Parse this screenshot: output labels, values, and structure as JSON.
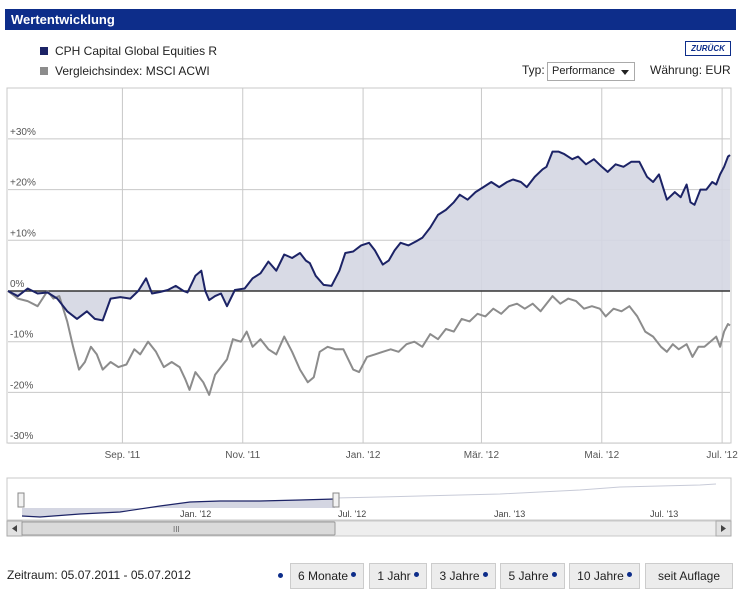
{
  "header": {
    "title": "Wertentwicklung"
  },
  "legend": [
    {
      "label": "CPH Capital Global Equities R",
      "color": "#1c2366"
    },
    {
      "label": "Vergleichsindex: MSCI ACWI",
      "color": "#8c8c8c"
    }
  ],
  "back_button": "ZURÜCK",
  "controls": {
    "typ_label": "Typ:",
    "typ_value": "Performance",
    "currency": "Währung: EUR"
  },
  "chart_data": {
    "type": "area",
    "x_start": "2011-07-05",
    "x_end": "2012-07-05",
    "x_ticks": [
      {
        "date": "2011-09-01",
        "label": "Sep. '11"
      },
      {
        "date": "2011-11-01",
        "label": "Nov. '11"
      },
      {
        "date": "2012-01-01",
        "label": "Jan. '12"
      },
      {
        "date": "2012-03-01",
        "label": "Mär. '12"
      },
      {
        "date": "2012-05-01",
        "label": "Mai. '12"
      },
      {
        "date": "2012-07-01",
        "label": "Jul. '12"
      }
    ],
    "y_ticks": [
      {
        "value": 30,
        "label": "+30%"
      },
      {
        "value": 20,
        "label": "+20%"
      },
      {
        "value": 10,
        "label": "+10%"
      },
      {
        "value": 0,
        "label": "0%"
      },
      {
        "value": -10,
        "label": "-10%"
      },
      {
        "value": -20,
        "label": "-20%"
      },
      {
        "value": -30,
        "label": "-30%"
      }
    ],
    "ylim": [
      -30,
      30
    ],
    "grid": true,
    "series": [
      {
        "name": "CPH Capital Global Equities R",
        "color": "#1c2366",
        "fill": true,
        "points": [
          [
            "2011-07-05",
            0
          ],
          [
            "2011-07-10",
            -1
          ],
          [
            "2011-07-15",
            0.5
          ],
          [
            "2011-07-20",
            -0.5
          ],
          [
            "2011-07-25",
            -0.3
          ],
          [
            "2011-07-30",
            -1.5
          ],
          [
            "2011-08-04",
            -4
          ],
          [
            "2011-08-09",
            -5.5
          ],
          [
            "2011-08-14",
            -4
          ],
          [
            "2011-08-18",
            -5.5
          ],
          [
            "2011-08-22",
            -5.8
          ],
          [
            "2011-08-26",
            -1.5
          ],
          [
            "2011-08-31",
            -1.2
          ],
          [
            "2011-09-05",
            -1.5
          ],
          [
            "2011-09-09",
            0
          ],
          [
            "2011-09-13",
            2.5
          ],
          [
            "2011-09-16",
            -0.5
          ],
          [
            "2011-09-20",
            -0.2
          ],
          [
            "2011-09-24",
            0.2
          ],
          [
            "2011-09-28",
            1
          ],
          [
            "2011-10-02",
            0
          ],
          [
            "2011-10-04",
            -0.3
          ],
          [
            "2011-10-08",
            3
          ],
          [
            "2011-10-11",
            4
          ],
          [
            "2011-10-13",
            0
          ],
          [
            "2011-10-15",
            -1.8
          ],
          [
            "2011-10-18",
            -1
          ],
          [
            "2011-10-21",
            -0.5
          ],
          [
            "2011-10-24",
            -3
          ],
          [
            "2011-10-28",
            0.2
          ],
          [
            "2011-11-02",
            0.5
          ],
          [
            "2011-11-06",
            2.5
          ],
          [
            "2011-11-10",
            3.5
          ],
          [
            "2011-11-14",
            5.8
          ],
          [
            "2011-11-18",
            4
          ],
          [
            "2011-11-22",
            7.2
          ],
          [
            "2011-11-26",
            6.5
          ],
          [
            "2011-11-30",
            7.5
          ],
          [
            "2011-12-03",
            6
          ],
          [
            "2011-12-05",
            5.5
          ],
          [
            "2011-12-08",
            3
          ],
          [
            "2011-12-12",
            1.2
          ],
          [
            "2011-12-16",
            1
          ],
          [
            "2011-12-20",
            4
          ],
          [
            "2011-12-23",
            7.5
          ],
          [
            "2011-12-27",
            7.8
          ],
          [
            "2011-12-31",
            9
          ],
          [
            "2012-01-04",
            9.5
          ],
          [
            "2012-01-07",
            8
          ],
          [
            "2012-01-11",
            5.2
          ],
          [
            "2012-01-14",
            6
          ],
          [
            "2012-01-17",
            8
          ],
          [
            "2012-01-20",
            9.5
          ],
          [
            "2012-01-24",
            9
          ],
          [
            "2012-01-28",
            9.8
          ],
          [
            "2012-01-31",
            10.5
          ],
          [
            "2012-02-04",
            12.5
          ],
          [
            "2012-02-08",
            15
          ],
          [
            "2012-02-12",
            16
          ],
          [
            "2012-02-16",
            17.5
          ],
          [
            "2012-02-19",
            19
          ],
          [
            "2012-02-23",
            18
          ],
          [
            "2012-02-27",
            19.5
          ],
          [
            "2012-03-02",
            20.5
          ],
          [
            "2012-03-06",
            21.5
          ],
          [
            "2012-03-10",
            20.5
          ],
          [
            "2012-03-14",
            21.5
          ],
          [
            "2012-03-17",
            22
          ],
          [
            "2012-03-21",
            21.5
          ],
          [
            "2012-03-24",
            20.5
          ],
          [
            "2012-03-28",
            22.5
          ],
          [
            "2012-04-01",
            24
          ],
          [
            "2012-04-03",
            24.5
          ],
          [
            "2012-04-06",
            27.5
          ],
          [
            "2012-04-09",
            27.5
          ],
          [
            "2012-04-12",
            27
          ],
          [
            "2012-04-16",
            26
          ],
          [
            "2012-04-19",
            26.5
          ],
          [
            "2012-04-23",
            25
          ],
          [
            "2012-04-27",
            26
          ],
          [
            "2012-05-01",
            24.5
          ],
          [
            "2012-05-04",
            23.5
          ],
          [
            "2012-05-08",
            25
          ],
          [
            "2012-05-12",
            24.5
          ],
          [
            "2012-05-16",
            25.5
          ],
          [
            "2012-05-20",
            25.5
          ],
          [
            "2012-05-24",
            22.5
          ],
          [
            "2012-05-27",
            21.5
          ],
          [
            "2012-05-30",
            23
          ],
          [
            "2012-06-03",
            18
          ],
          [
            "2012-06-07",
            19.5
          ],
          [
            "2012-06-10",
            18.5
          ],
          [
            "2012-06-13",
            21
          ],
          [
            "2012-06-15",
            17.5
          ],
          [
            "2012-06-17",
            17
          ],
          [
            "2012-06-20",
            20
          ],
          [
            "2012-06-23",
            20
          ],
          [
            "2012-06-26",
            21.5
          ],
          [
            "2012-06-28",
            21
          ],
          [
            "2012-06-30",
            23
          ],
          [
            "2012-07-02",
            24.5
          ],
          [
            "2012-07-04",
            26.5
          ],
          [
            "2012-07-05",
            26.8
          ]
        ]
      },
      {
        "name": "Vergleichsindex: MSCI ACWI",
        "color": "#8c8c8c",
        "fill": false,
        "points": [
          [
            "2011-07-05",
            0
          ],
          [
            "2011-07-10",
            -1.5
          ],
          [
            "2011-07-15",
            -2
          ],
          [
            "2011-07-20",
            -3
          ],
          [
            "2011-07-25",
            0
          ],
          [
            "2011-07-28",
            -1.5
          ],
          [
            "2011-07-31",
            -1
          ],
          [
            "2011-08-04",
            -6
          ],
          [
            "2011-08-07",
            -11
          ],
          [
            "2011-08-10",
            -15.5
          ],
          [
            "2011-08-13",
            -14
          ],
          [
            "2011-08-16",
            -11
          ],
          [
            "2011-08-19",
            -12.5
          ],
          [
            "2011-08-22",
            -15.5
          ],
          [
            "2011-08-26",
            -14
          ],
          [
            "2011-08-30",
            -15
          ],
          [
            "2011-09-03",
            -14.5
          ],
          [
            "2011-09-07",
            -11.5
          ],
          [
            "2011-09-10",
            -12.5
          ],
          [
            "2011-09-14",
            -10
          ],
          [
            "2011-09-18",
            -12
          ],
          [
            "2011-09-22",
            -15
          ],
          [
            "2011-09-26",
            -14
          ],
          [
            "2011-09-30",
            -15
          ],
          [
            "2011-10-03",
            -17.5
          ],
          [
            "2011-10-05",
            -19.5
          ],
          [
            "2011-10-08",
            -16
          ],
          [
            "2011-10-12",
            -18
          ],
          [
            "2011-10-15",
            -20.5
          ],
          [
            "2011-10-18",
            -16.5
          ],
          [
            "2011-10-21",
            -15
          ],
          [
            "2011-10-24",
            -13.5
          ],
          [
            "2011-10-27",
            -9.5
          ],
          [
            "2011-10-31",
            -10
          ],
          [
            "2011-11-03",
            -8
          ],
          [
            "2011-11-06",
            -11
          ],
          [
            "2011-11-10",
            -9.5
          ],
          [
            "2011-11-14",
            -11.5
          ],
          [
            "2011-11-18",
            -12.5
          ],
          [
            "2011-11-22",
            -9
          ],
          [
            "2011-11-26",
            -12
          ],
          [
            "2011-11-30",
            -15.5
          ],
          [
            "2011-12-04",
            -18
          ],
          [
            "2011-12-07",
            -17
          ],
          [
            "2011-12-10",
            -12
          ],
          [
            "2011-12-14",
            -11
          ],
          [
            "2011-12-18",
            -11.5
          ],
          [
            "2011-12-22",
            -11.5
          ],
          [
            "2011-12-27",
            -15.5
          ],
          [
            "2011-12-30",
            -16
          ],
          [
            "2012-01-03",
            -13
          ],
          [
            "2012-01-07",
            -12.5
          ],
          [
            "2012-01-11",
            -12
          ],
          [
            "2012-01-15",
            -11.5
          ],
          [
            "2012-01-19",
            -12
          ],
          [
            "2012-01-23",
            -10.5
          ],
          [
            "2012-01-27",
            -10
          ],
          [
            "2012-01-31",
            -11
          ],
          [
            "2012-02-04",
            -8.5
          ],
          [
            "2012-02-08",
            -9.5
          ],
          [
            "2012-02-12",
            -7.5
          ],
          [
            "2012-02-16",
            -8
          ],
          [
            "2012-02-20",
            -5.5
          ],
          [
            "2012-02-24",
            -6
          ],
          [
            "2012-02-28",
            -4.5
          ],
          [
            "2012-03-03",
            -5
          ],
          [
            "2012-03-07",
            -3.5
          ],
          [
            "2012-03-11",
            -4.5
          ],
          [
            "2012-03-15",
            -3
          ],
          [
            "2012-03-19",
            -2.5
          ],
          [
            "2012-03-23",
            -3.5
          ],
          [
            "2012-03-27",
            -2.5
          ],
          [
            "2012-03-31",
            -4
          ],
          [
            "2012-04-03",
            -2.5
          ],
          [
            "2012-04-06",
            -1
          ],
          [
            "2012-04-10",
            -2.5
          ],
          [
            "2012-04-14",
            -1.5
          ],
          [
            "2012-04-18",
            -2
          ],
          [
            "2012-04-22",
            -3.5
          ],
          [
            "2012-04-26",
            -3
          ],
          [
            "2012-04-30",
            -3.5
          ],
          [
            "2012-05-03",
            -5
          ],
          [
            "2012-05-07",
            -3.5
          ],
          [
            "2012-05-11",
            -4
          ],
          [
            "2012-05-15",
            -3
          ],
          [
            "2012-05-19",
            -5
          ],
          [
            "2012-05-23",
            -8
          ],
          [
            "2012-05-27",
            -9
          ],
          [
            "2012-05-31",
            -11
          ],
          [
            "2012-06-03",
            -12
          ],
          [
            "2012-06-06",
            -10.5
          ],
          [
            "2012-06-09",
            -11.5
          ],
          [
            "2012-06-13",
            -10.5
          ],
          [
            "2012-06-16",
            -13
          ],
          [
            "2012-06-19",
            -11
          ],
          [
            "2012-06-22",
            -11
          ],
          [
            "2012-06-25",
            -10
          ],
          [
            "2012-06-28",
            -9
          ],
          [
            "2012-06-30",
            -11
          ],
          [
            "2012-07-02",
            -8
          ],
          [
            "2012-07-04",
            -6.5
          ],
          [
            "2012-07-05",
            -6.8
          ]
        ]
      }
    ]
  },
  "navigator": {
    "ticks": [
      "Jan. '12",
      "Jul. '12",
      "Jan. '13",
      "Jul. '13"
    ],
    "scroll_label": "III"
  },
  "footer": {
    "zeitraum": "Zeitraum: 05.07.2011 - 05.07.2012",
    "buttons": [
      "6 Monate",
      "1 Jahr",
      "3 Jahre",
      "5 Jahre",
      "10 Jahre",
      "seit Auflage"
    ]
  }
}
